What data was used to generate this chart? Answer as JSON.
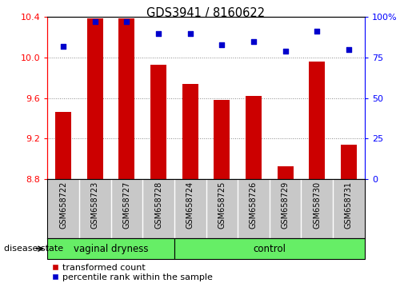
{
  "title": "GDS3941 / 8160622",
  "samples": [
    "GSM658722",
    "GSM658723",
    "GSM658727",
    "GSM658728",
    "GSM658724",
    "GSM658725",
    "GSM658726",
    "GSM658729",
    "GSM658730",
    "GSM658731"
  ],
  "transformed_count": [
    9.46,
    10.39,
    10.39,
    9.93,
    9.74,
    9.58,
    9.62,
    8.93,
    9.96,
    9.14
  ],
  "percentile_rank": [
    82,
    97,
    97,
    90,
    90,
    83,
    85,
    79,
    91,
    80
  ],
  "ylim_left": [
    8.8,
    10.4
  ],
  "ylim_right": [
    0,
    100
  ],
  "yticks_left": [
    8.8,
    9.2,
    9.6,
    10.0,
    10.4
  ],
  "yticks_right": [
    0,
    25,
    50,
    75,
    100
  ],
  "group_boundary": 4,
  "group_labels": [
    "vaginal dryness",
    "control"
  ],
  "group_color": "#66EE66",
  "bar_color": "#CC0000",
  "dot_color": "#0000CC",
  "bar_width": 0.5,
  "grid_color": "#888888",
  "tick_bg_color": "#C8C8C8",
  "disease_state_label": "disease state",
  "legend_labels": [
    "transformed count",
    "percentile rank within the sample"
  ],
  "legend_colors": [
    "#CC0000",
    "#0000CC"
  ]
}
